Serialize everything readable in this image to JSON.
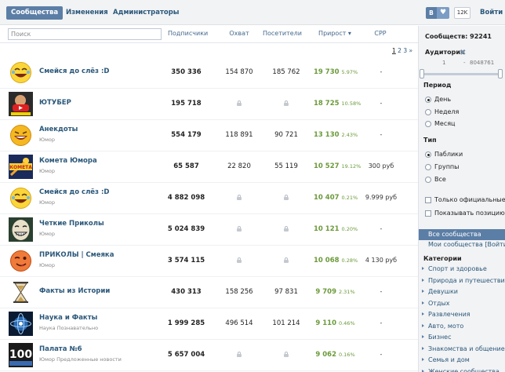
{
  "tabs": [
    "Сообщества",
    "Изменения",
    "Администраторы"
  ],
  "header_right": {
    "vk_label": "B",
    "heart": "♥",
    "count": "12K",
    "login": "Войти"
  },
  "search": {
    "placeholder": "Поиск"
  },
  "columns": [
    "Подписчики",
    "Охват",
    "Посетители",
    "Прирост",
    "CPP"
  ],
  "sort_arrow": "▾",
  "pager": {
    "current": "1",
    "pages": [
      "2",
      "3"
    ],
    "next": "»"
  },
  "rows": [
    {
      "name": "Смейся до слёз :D",
      "category": "",
      "subs": "350 336",
      "reach": "154 870",
      "visits": "185 762",
      "growth": "19 730",
      "growth_pct": "5.97%",
      "cpp": "-",
      "avatar": "smiley"
    },
    {
      "name": "ЮТУБЕР",
      "category": "",
      "subs": "195 718",
      "reach": "",
      "visits": "",
      "growth": "18 725",
      "growth_pct": "10.58%",
      "cpp": "-",
      "avatar": "youtuber"
    },
    {
      "name": "Анекдоты",
      "category": "Юмор",
      "subs": "554 179",
      "reach": "118 891",
      "visits": "90 721",
      "growth": "13 130",
      "growth_pct": "2.43%",
      "cpp": "-",
      "avatar": "laugh"
    },
    {
      "name": "Комета Юмора",
      "category": "Юмор",
      "subs": "65 587",
      "reach": "22 820",
      "visits": "55 119",
      "growth": "10 527",
      "growth_pct": "19.12%",
      "cpp": "300 руб",
      "avatar": "kometa"
    },
    {
      "name": "Смейся до слёз :D",
      "category": "Юмор",
      "subs": "4 882 098",
      "reach": "",
      "visits": "",
      "growth": "10 407",
      "growth_pct": "0.21%",
      "cpp": "9.999 руб",
      "avatar": "smiley"
    },
    {
      "name": "Четкие Приколы",
      "category": "Юмор",
      "subs": "5 024 839",
      "reach": "",
      "visits": "",
      "growth": "10 121",
      "growth_pct": "0.20%",
      "cpp": "-",
      "avatar": "troll"
    },
    {
      "name": "ПРИКОЛЫ | Смеяка",
      "category": "Юмор",
      "subs": "3 574 115",
      "reach": "",
      "visits": "",
      "growth": "10 068",
      "growth_pct": "0.28%",
      "cpp": "4 130 руб",
      "avatar": "wink"
    },
    {
      "name": "Факты из Истории",
      "category": "",
      "subs": "430 313",
      "reach": "158 256",
      "visits": "97 831",
      "growth": "9 709",
      "growth_pct": "2.31%",
      "cpp": "-",
      "avatar": "hourglass"
    },
    {
      "name": "Наука и Факты",
      "category": "Наука  Познавательно",
      "subs": "1 999 285",
      "reach": "496 514",
      "visits": "101 214",
      "growth": "9 110",
      "growth_pct": "0.46%",
      "cpp": "-",
      "avatar": "science"
    },
    {
      "name": "Палата №6",
      "category": "Юмор  Предложенные новости",
      "subs": "5 657 004",
      "reach": "",
      "visits": "",
      "growth": "9 062",
      "growth_pct": "0.16%",
      "cpp": "-",
      "avatar": "mega"
    }
  ],
  "sidebar": {
    "communities_count": "Сообществ: 92241",
    "audience_label": "Аудитория",
    "audience_min": "1",
    "audience_sep": "-",
    "audience_max": "8048761",
    "period_label": "Период",
    "period_options": [
      "День",
      "Неделя",
      "Месяц"
    ],
    "type_label": "Тип",
    "type_options": [
      "Паблики",
      "Группы",
      "Все"
    ],
    "checks": [
      "Только официальные",
      "Показывать позицию"
    ],
    "all_communities": "Все сообщества",
    "my_communities": "Мои сообщества [Войти]",
    "categories_label": "Категории",
    "categories": [
      "Спорт и здоровье",
      "Природа и путешествия",
      "Девушки",
      "Отдых",
      "Развлечения",
      "Авто, мото",
      "Бизнес",
      "Знакомства и общение",
      "Семья и дом",
      "Женские сообщества"
    ]
  }
}
